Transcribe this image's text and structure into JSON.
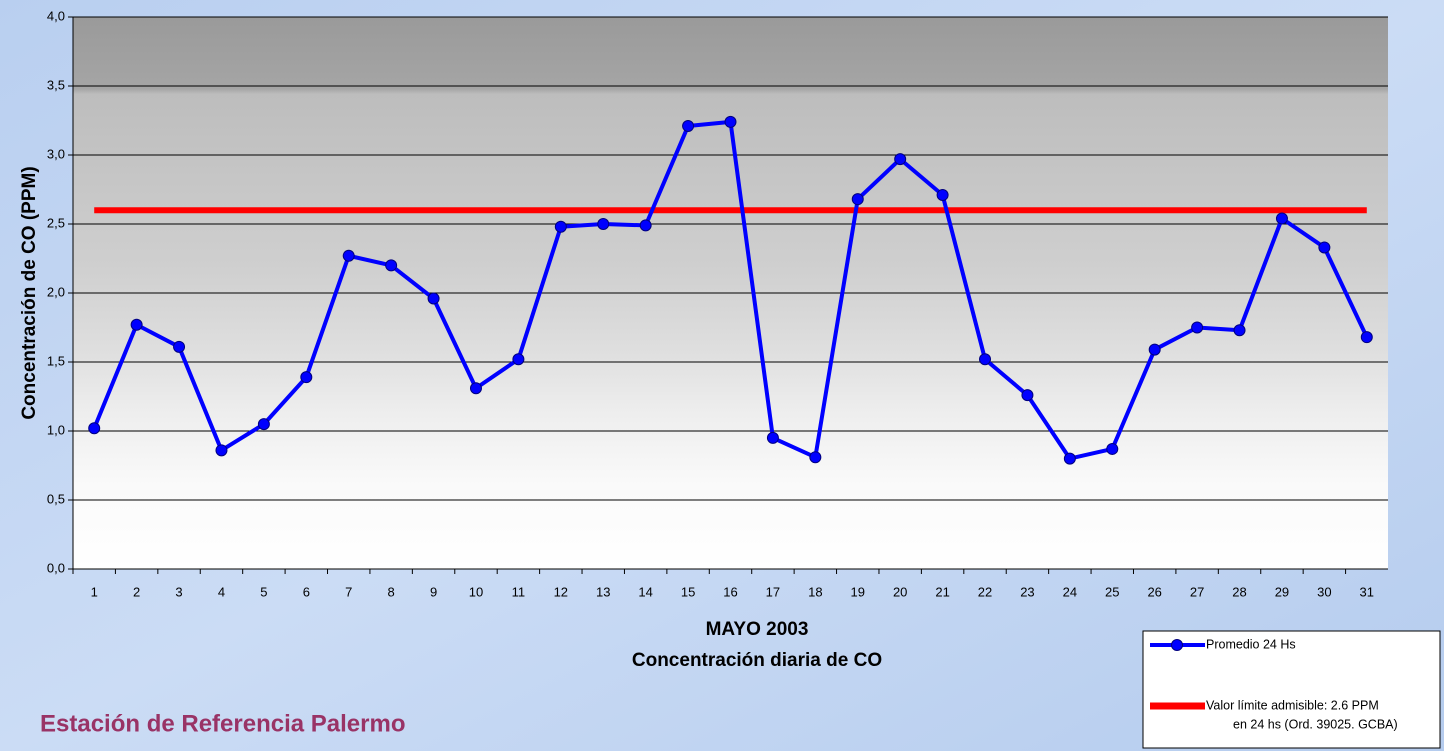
{
  "chart_data": {
    "type": "line",
    "title": "MAYO 2003",
    "subtitle": "Concentración diaria de CO",
    "ylabel": "Concentración de CO (PPM)",
    "footer": "Estación de Referencia Palermo",
    "categories": [
      "1",
      "2",
      "3",
      "4",
      "5",
      "6",
      "7",
      "8",
      "9",
      "10",
      "11",
      "12",
      "13",
      "14",
      "15",
      "16",
      "17",
      "18",
      "19",
      "20",
      "21",
      "22",
      "23",
      "24",
      "25",
      "26",
      "27",
      "28",
      "29",
      "30",
      "31"
    ],
    "series": [
      {
        "name": [
          "Promedio 24 Hs"
        ],
        "color": "#0000ff",
        "marker": true,
        "values": [
          1.02,
          1.77,
          1.61,
          0.86,
          1.05,
          1.39,
          2.27,
          2.2,
          1.96,
          1.31,
          1.52,
          2.48,
          2.5,
          2.49,
          3.21,
          3.24,
          0.95,
          0.81,
          2.68,
          2.97,
          2.71,
          1.52,
          1.26,
          0.8,
          0.87,
          1.59,
          1.75,
          1.73,
          2.54,
          2.33,
          1.68
        ]
      },
      {
        "name": [
          "Valor límite admisible: 2.6 PPM",
          "en 24 hs (Ord. 39025. GCBA)"
        ],
        "color": "#ff0000",
        "marker": false,
        "values": [
          2.6,
          2.6,
          2.6,
          2.6,
          2.6,
          2.6,
          2.6,
          2.6,
          2.6,
          2.6,
          2.6,
          2.6,
          2.6,
          2.6,
          2.6,
          2.6,
          2.6,
          2.6,
          2.6,
          2.6,
          2.6,
          2.6,
          2.6,
          2.6,
          2.6,
          2.6,
          2.6,
          2.6,
          2.6,
          2.6,
          2.6
        ]
      }
    ],
    "ylim": [
      0,
      4
    ],
    "yticks": [
      {
        "value": 0,
        "label": "0,0"
      },
      {
        "value": 0.5,
        "label": "0,5"
      },
      {
        "value": 1,
        "label": "1,0"
      },
      {
        "value": 1.5,
        "label": "1,5"
      },
      {
        "value": 2,
        "label": "2,0"
      },
      {
        "value": 2.5,
        "label": "2,5"
      },
      {
        "value": 3,
        "label": "3,0"
      },
      {
        "value": 3.5,
        "label": "3,5"
      },
      {
        "value": 4,
        "label": "4,0"
      }
    ],
    "grid": true
  }
}
